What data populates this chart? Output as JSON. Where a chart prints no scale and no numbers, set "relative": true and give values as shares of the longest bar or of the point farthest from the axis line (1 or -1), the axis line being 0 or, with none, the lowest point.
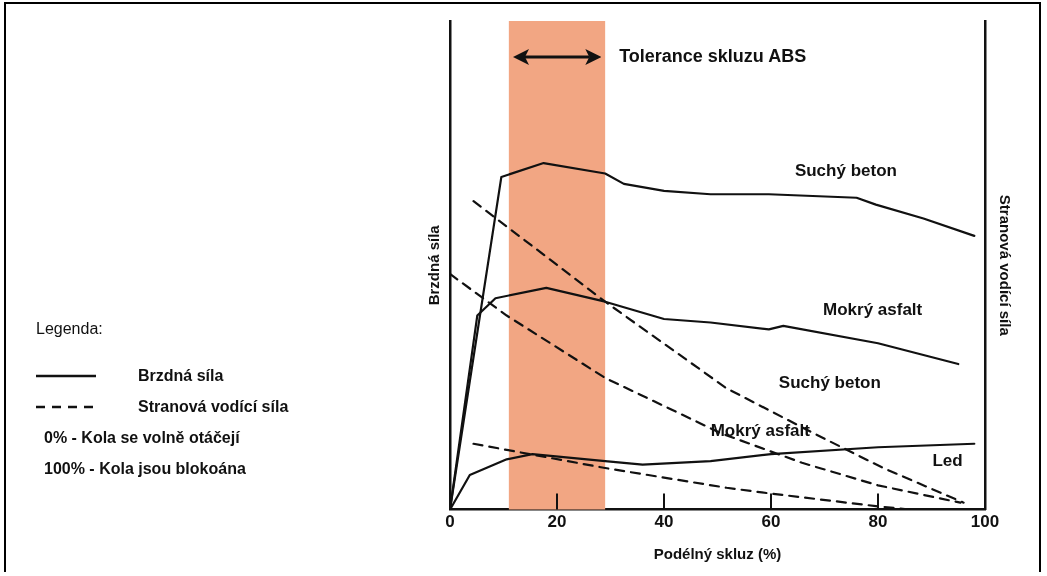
{
  "chart_data": {
    "type": "line",
    "relative": true,
    "xlabel": "Podélný skluz (%)",
    "ylabel": "Brzdná síla",
    "y2label": "Stranová vodící síla",
    "xlim": [
      0,
      100
    ],
    "xticks": [
      0,
      20,
      40,
      60,
      80,
      100
    ],
    "grid": false,
    "legend": false,
    "marker": "none",
    "series": [
      {
        "name": "Suchý beton",
        "color": "#111111",
        "line_style": "solid",
        "x": [
          0,
          9.6,
          17.5,
          29,
          32.5,
          40,
          48.7,
          59.6,
          76,
          79.6,
          88.5,
          98
        ],
        "values": [
          0,
          0.96,
          1,
          0.97,
          0.94,
          0.92,
          0.91,
          0.91,
          0.9,
          0.88,
          0.84,
          0.79
        ]
      },
      {
        "name": "Mokrý asfalt",
        "color": "#111111",
        "line_style": "solid",
        "x": [
          0,
          5.1,
          8.5,
          18,
          29,
          40,
          48.7,
          59.6,
          62.3,
          80,
          95
        ],
        "values": [
          0,
          0.56,
          0.61,
          0.64,
          0.6,
          0.55,
          0.54,
          0.52,
          0.53,
          0.48,
          0.42
        ]
      },
      {
        "name": "Led",
        "color": "#111111",
        "line_style": "solid",
        "x": [
          0,
          3.7,
          10.6,
          15.4,
          29,
          36,
          48.7,
          60,
          80,
          98
        ],
        "values": [
          0,
          0.1,
          0.145,
          0.16,
          0.14,
          0.13,
          0.14,
          0.16,
          0.18,
          0.19
        ]
      },
      {
        "name": "Suchý beton",
        "color": "#111111",
        "line_style": "dashed",
        "x": [
          4.4,
          29,
          51.7,
          68,
          81,
          96
        ],
        "values": [
          0.89,
          0.6,
          0.35,
          0.22,
          0.12,
          0.02
        ]
      },
      {
        "name": "Mokrý asfalt",
        "color": "#111111",
        "line_style": "dashed",
        "x": [
          0,
          10.6,
          29,
          50.7,
          65.8,
          80,
          95.4
        ],
        "values": [
          0.68,
          0.56,
          0.38,
          0.22,
          0.135,
          0.07,
          0.02
        ]
      },
      {
        "color": "#111111",
        "line_style": "dashed",
        "x": [
          4.4,
          29,
          51.7,
          59.6,
          79.6,
          86
        ],
        "values": [
          0.19,
          0.12,
          0.063,
          0.047,
          0.01,
          0
        ]
      }
    ],
    "bands": [
      {
        "axis": "x",
        "from": 11,
        "to": 29,
        "label": "Tolerance skluzu ABS",
        "color": "#f2a683"
      }
    ],
    "legend_title": "Legenda:",
    "annotations": [
      "Brzdná síla",
      "Stranová vodící síla",
      "0%  -  Kola se volně otáčejí",
      "100%  -  Kola jsou blokoána"
    ]
  }
}
